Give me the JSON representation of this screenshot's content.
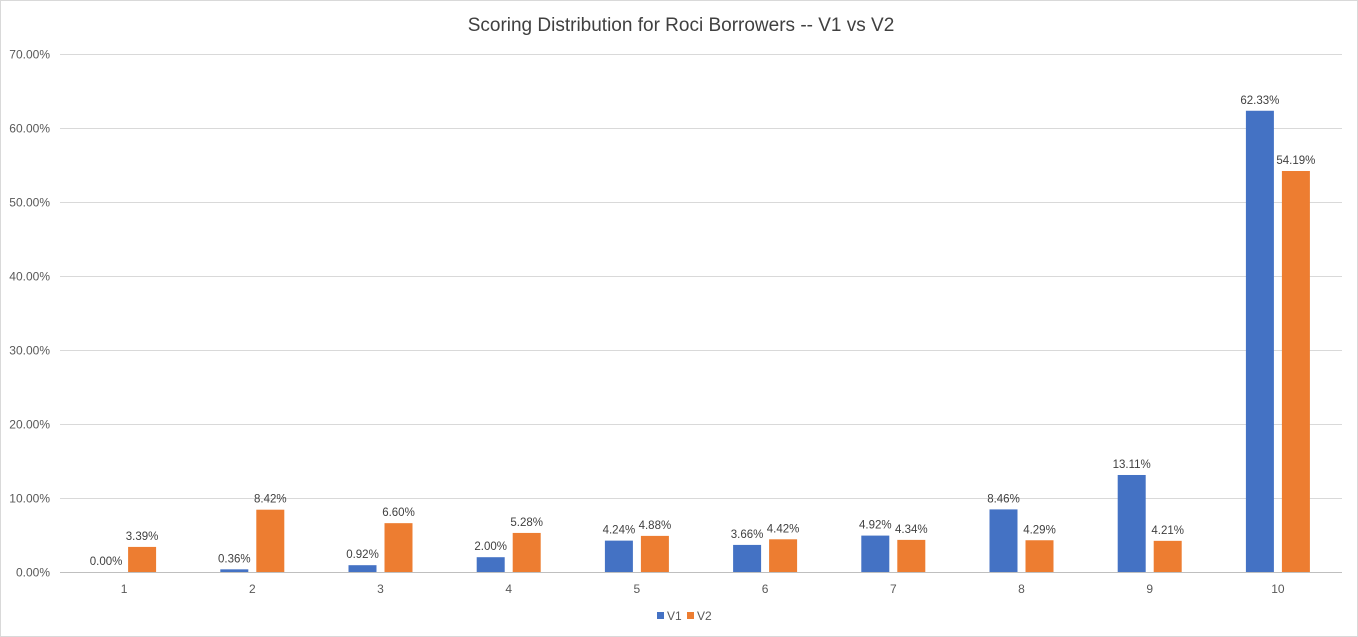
{
  "chart_data": {
    "type": "bar",
    "title": "Scoring Distribution for Roci Borrowers -- V1 vs V2",
    "xlabel": "",
    "ylabel": "",
    "categories": [
      "1",
      "2",
      "3",
      "4",
      "5",
      "6",
      "7",
      "8",
      "9",
      "10"
    ],
    "series": [
      {
        "name": "V1",
        "color": "#4472C4",
        "values": [
          0.0,
          0.36,
          0.92,
          2.0,
          4.24,
          3.66,
          4.92,
          8.46,
          13.11,
          62.33
        ],
        "labels": [
          "0.00%",
          "0.36%",
          "0.92%",
          "2.00%",
          "4.24%",
          "3.66%",
          "4.92%",
          "8.46%",
          "13.11%",
          "62.33%"
        ]
      },
      {
        "name": "V2",
        "color": "#ED7D31",
        "values": [
          3.39,
          8.42,
          6.6,
          5.28,
          4.88,
          4.42,
          4.34,
          4.29,
          4.21,
          54.19
        ],
        "labels": [
          "3.39%",
          "8.42%",
          "6.60%",
          "5.28%",
          "4.88%",
          "4.42%",
          "4.34%",
          "4.29%",
          "4.21%",
          "54.19%"
        ]
      }
    ],
    "ylim": [
      0,
      70
    ],
    "yticks": [
      "0.00%",
      "10.00%",
      "20.00%",
      "30.00%",
      "40.00%",
      "50.00%",
      "60.00%",
      "70.00%"
    ],
    "ytick_values": [
      0,
      10,
      20,
      30,
      40,
      50,
      60,
      70
    ],
    "grid": true,
    "legend_position": "bottom"
  }
}
